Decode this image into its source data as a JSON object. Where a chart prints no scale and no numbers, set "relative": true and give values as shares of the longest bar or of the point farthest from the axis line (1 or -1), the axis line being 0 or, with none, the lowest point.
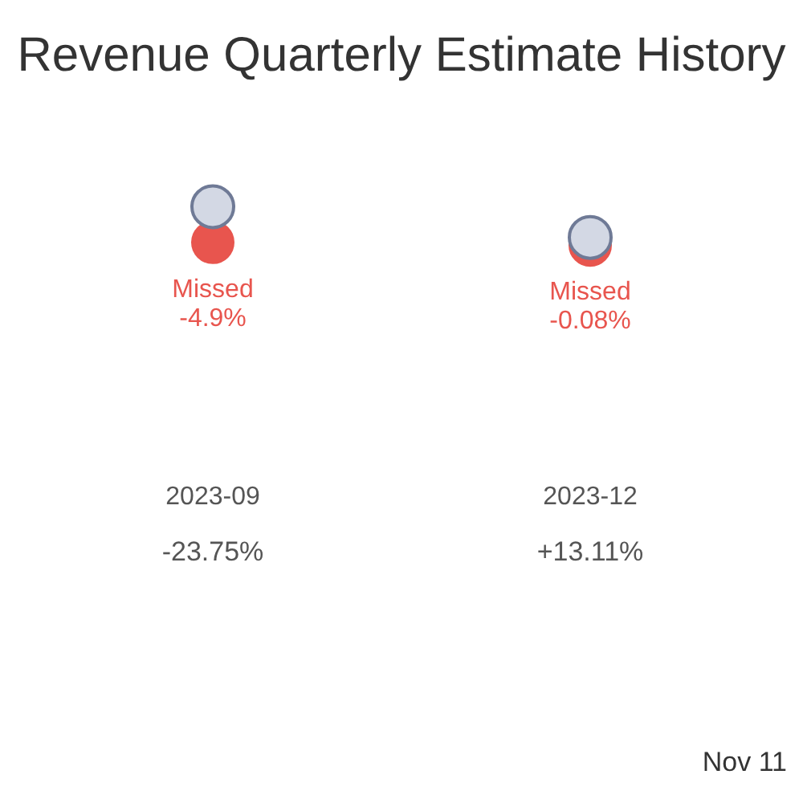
{
  "chart_data": {
    "type": "scatter",
    "title": "Revenue Quarterly Estimate History",
    "categories": [
      "2023-09",
      "2023-12"
    ],
    "relative": true,
    "marker": "circle",
    "grid": false,
    "legend": false,
    "series": [
      {
        "color": "#d3d8e4",
        "values": [
          1,
          0.2
        ]
      },
      {
        "color": "#e8554e",
        "values": [
          0.07,
          0
        ]
      }
    ],
    "annotations": [
      "Missed -4.9%",
      "Missed -0.08%",
      "-23.75%",
      "+13.11%",
      "Nov 11"
    ]
  }
}
